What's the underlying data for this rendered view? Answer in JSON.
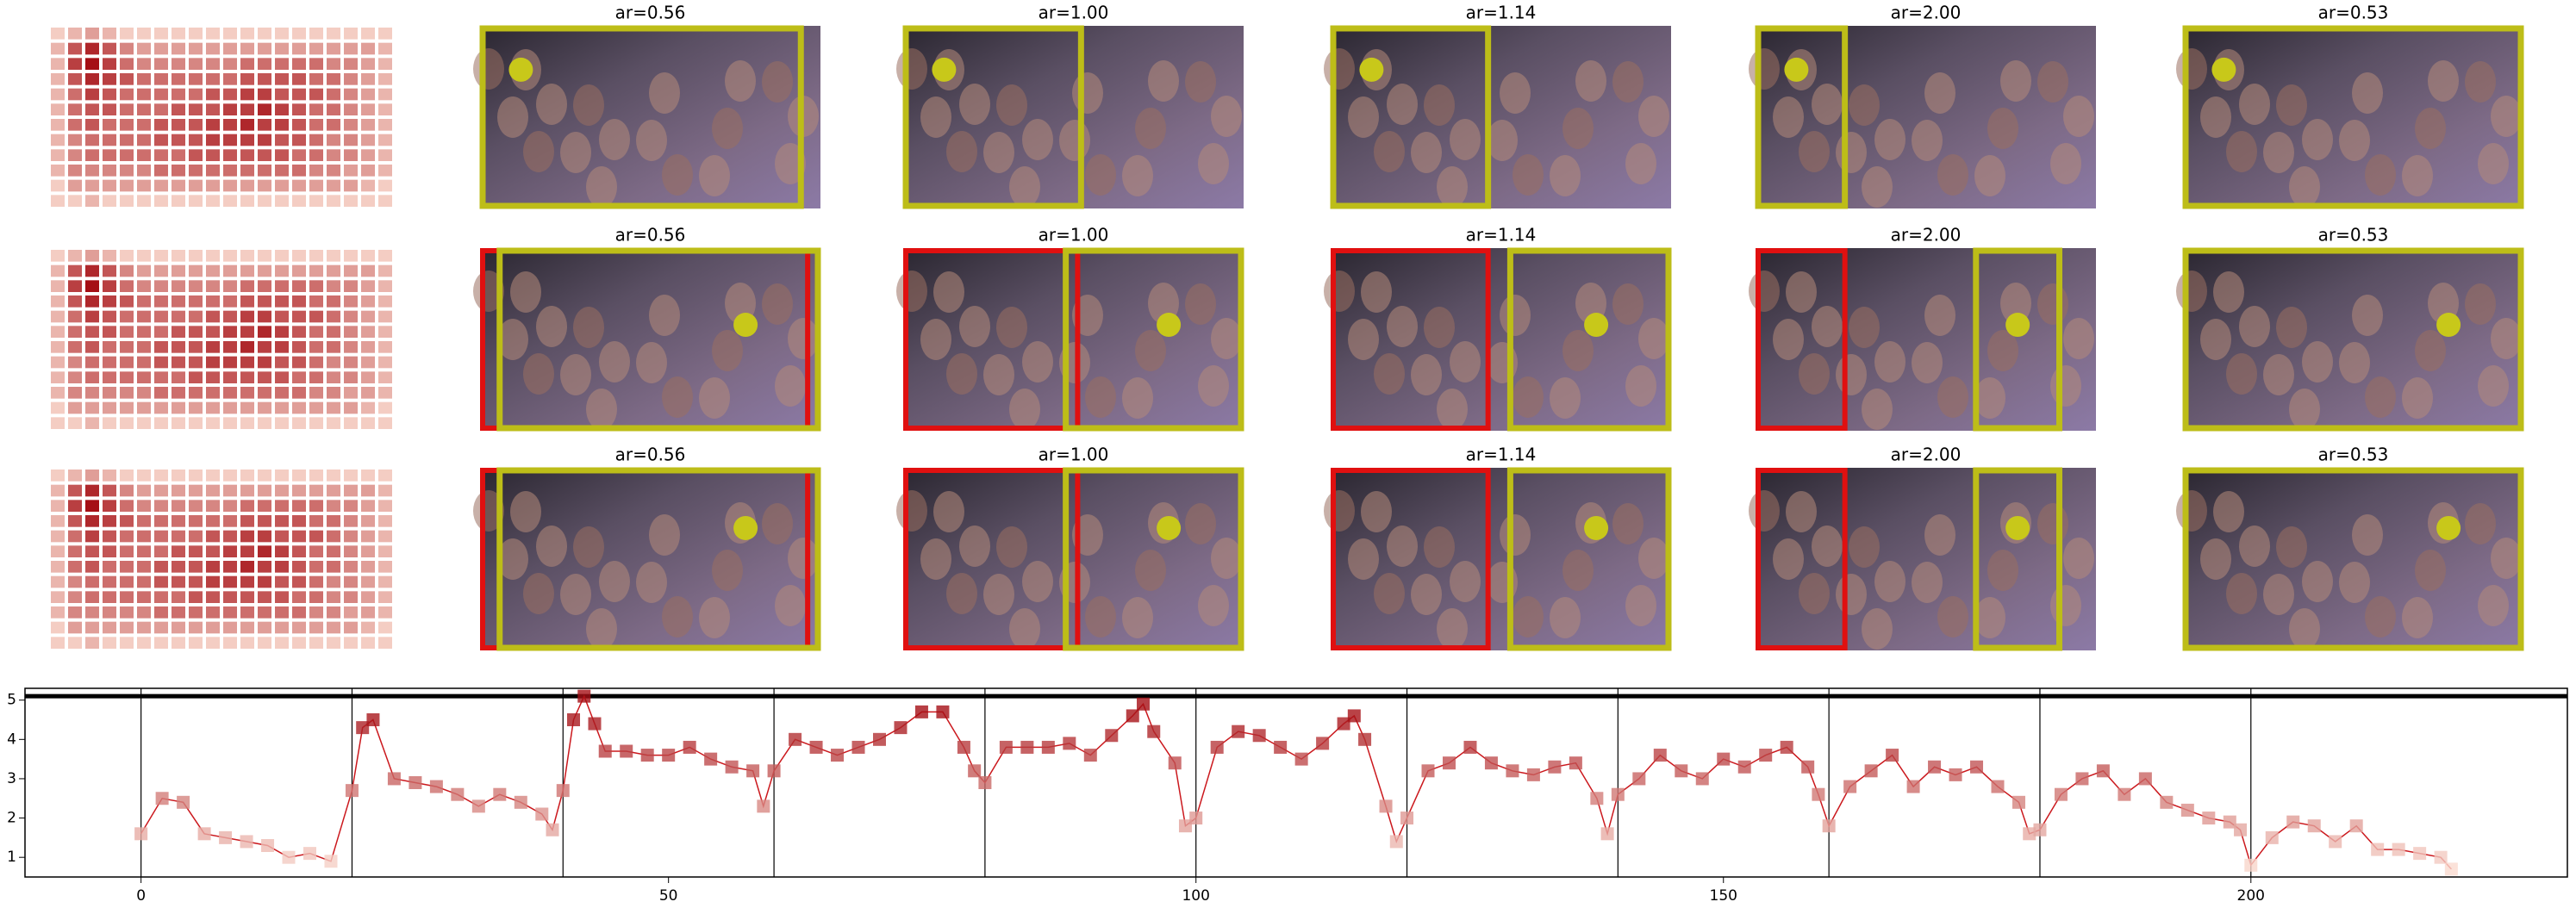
{
  "chart_data": {
    "type": "line",
    "color": "#cb181d",
    "x": [
      0,
      2,
      4,
      6,
      8,
      10,
      12,
      14,
      16,
      18,
      20,
      21,
      22,
      24,
      26,
      28,
      30,
      32,
      34,
      36,
      38,
      39,
      40,
      41,
      42,
      43,
      44,
      46,
      48,
      50,
      52,
      54,
      56,
      58,
      59,
      60,
      62,
      64,
      66,
      68,
      70,
      72,
      74,
      76,
      78,
      79,
      80,
      82,
      84,
      86,
      88,
      90,
      92,
      94,
      95,
      96,
      98,
      99,
      100,
      102,
      104,
      106,
      108,
      110,
      112,
      114,
      115,
      116,
      118,
      119,
      120,
      122,
      124,
      126,
      128,
      130,
      132,
      134,
      136,
      138,
      139,
      140,
      142,
      144,
      146,
      148,
      150,
      152,
      154,
      156,
      158,
      159,
      160,
      162,
      164,
      166,
      168,
      170,
      172,
      174,
      176,
      178,
      179,
      180,
      182,
      184,
      186,
      188,
      190,
      192,
      194,
      196,
      198,
      199,
      200,
      202,
      204,
      206,
      208,
      210,
      212,
      214,
      216,
      218,
      219
    ],
    "values": [
      1.6,
      2.5,
      2.4,
      1.6,
      1.5,
      1.4,
      1.3,
      1.0,
      1.1,
      0.9,
      2.7,
      4.3,
      4.5,
      3.0,
      2.9,
      2.8,
      2.6,
      2.3,
      2.6,
      2.4,
      2.1,
      1.7,
      2.7,
      4.5,
      5.1,
      4.4,
      3.7,
      3.7,
      3.6,
      3.6,
      3.8,
      3.5,
      3.3,
      3.2,
      2.3,
      3.2,
      4.0,
      3.8,
      3.6,
      3.8,
      4.0,
      4.3,
      4.7,
      4.7,
      3.8,
      3.2,
      2.9,
      3.8,
      3.8,
      3.8,
      3.9,
      3.6,
      4.1,
      4.6,
      4.9,
      4.2,
      3.4,
      1.8,
      2.0,
      3.8,
      4.2,
      4.1,
      3.8,
      3.5,
      3.9,
      4.4,
      4.6,
      4.0,
      2.3,
      1.4,
      2.0,
      3.2,
      3.4,
      3.8,
      3.4,
      3.2,
      3.1,
      3.3,
      3.4,
      2.5,
      1.6,
      2.6,
      3.0,
      3.6,
      3.2,
      3.0,
      3.5,
      3.3,
      3.6,
      3.8,
      3.3,
      2.6,
      1.8,
      2.8,
      3.2,
      3.6,
      2.8,
      3.3,
      3.1,
      3.3,
      2.8,
      2.4,
      1.6,
      1.7,
      2.6,
      3.0,
      3.2,
      2.6,
      3.0,
      2.4,
      2.2,
      2.0,
      1.9,
      1.7,
      0.8,
      1.5,
      1.9,
      1.8,
      1.4,
      1.8,
      1.2,
      1.2,
      1.1,
      1.0,
      0.7
    ],
    "xlim": [
      -11,
      230
    ],
    "ylim": [
      0.5,
      5.3
    ],
    "xticks": [
      0,
      50,
      100,
      150,
      200
    ],
    "yticks": [
      1,
      2,
      3,
      4,
      5
    ],
    "vlines": [
      0,
      20,
      40,
      60,
      80,
      100,
      120,
      140,
      160,
      180,
      200
    ],
    "hline": 5.1
  },
  "heatmap": {
    "values": [
      [
        1,
        2,
        3,
        2,
        1,
        1,
        1,
        1,
        1,
        1,
        1,
        1,
        1,
        1,
        1,
        1,
        1,
        1,
        1,
        1
      ],
      [
        2,
        6,
        8,
        6,
        4,
        3,
        3,
        3,
        3,
        3,
        3,
        3,
        3,
        3,
        3,
        3,
        3,
        3,
        3,
        2
      ],
      [
        2,
        7,
        9,
        7,
        5,
        4,
        4,
        4,
        4,
        4,
        4,
        5,
        5,
        5,
        5,
        5,
        4,
        4,
        3,
        2
      ],
      [
        2,
        6,
        8,
        7,
        6,
        5,
        5,
        5,
        5,
        5,
        5,
        6,
        6,
        6,
        6,
        5,
        5,
        4,
        3,
        2
      ],
      [
        2,
        5,
        7,
        6,
        5,
        5,
        5,
        5,
        5,
        6,
        6,
        7,
        7,
        6,
        6,
        6,
        5,
        4,
        3,
        2
      ],
      [
        2,
        5,
        6,
        6,
        5,
        5,
        5,
        6,
        6,
        6,
        7,
        7,
        8,
        7,
        6,
        5,
        5,
        4,
        3,
        2
      ],
      [
        2,
        5,
        6,
        5,
        5,
        5,
        6,
        6,
        6,
        7,
        7,
        8,
        7,
        7,
        6,
        5,
        5,
        4,
        3,
        2
      ],
      [
        2,
        4,
        5,
        5,
        5,
        5,
        6,
        6,
        6,
        7,
        7,
        7,
        7,
        6,
        6,
        5,
        4,
        4,
        3,
        2
      ],
      [
        2,
        4,
        5,
        5,
        5,
        5,
        5,
        5,
        6,
        6,
        6,
        6,
        6,
        6,
        5,
        5,
        4,
        4,
        3,
        2
      ],
      [
        2,
        4,
        4,
        4,
        4,
        4,
        5,
        5,
        5,
        5,
        5,
        5,
        5,
        5,
        5,
        4,
        4,
        3,
        3,
        2
      ],
      [
        1,
        3,
        3,
        3,
        3,
        3,
        3,
        3,
        3,
        3,
        3,
        3,
        3,
        3,
        3,
        3,
        3,
        3,
        2,
        1
      ],
      [
        1,
        1,
        2,
        1,
        1,
        1,
        1,
        1,
        1,
        1,
        1,
        1,
        1,
        1,
        1,
        1,
        1,
        1,
        1,
        1
      ]
    ]
  },
  "panels": {
    "rows": [
      [
        "ar=0.56",
        "ar=1.00",
        "ar=1.14",
        "ar=2.00",
        "ar=0.53"
      ],
      [
        "ar=0.56",
        "ar=1.00",
        "ar=1.14",
        "ar=2.00",
        "ar=0.53"
      ],
      [
        "ar=0.56",
        "ar=1.00",
        "ar=1.14",
        "ar=2.00",
        "ar=0.53"
      ]
    ]
  }
}
